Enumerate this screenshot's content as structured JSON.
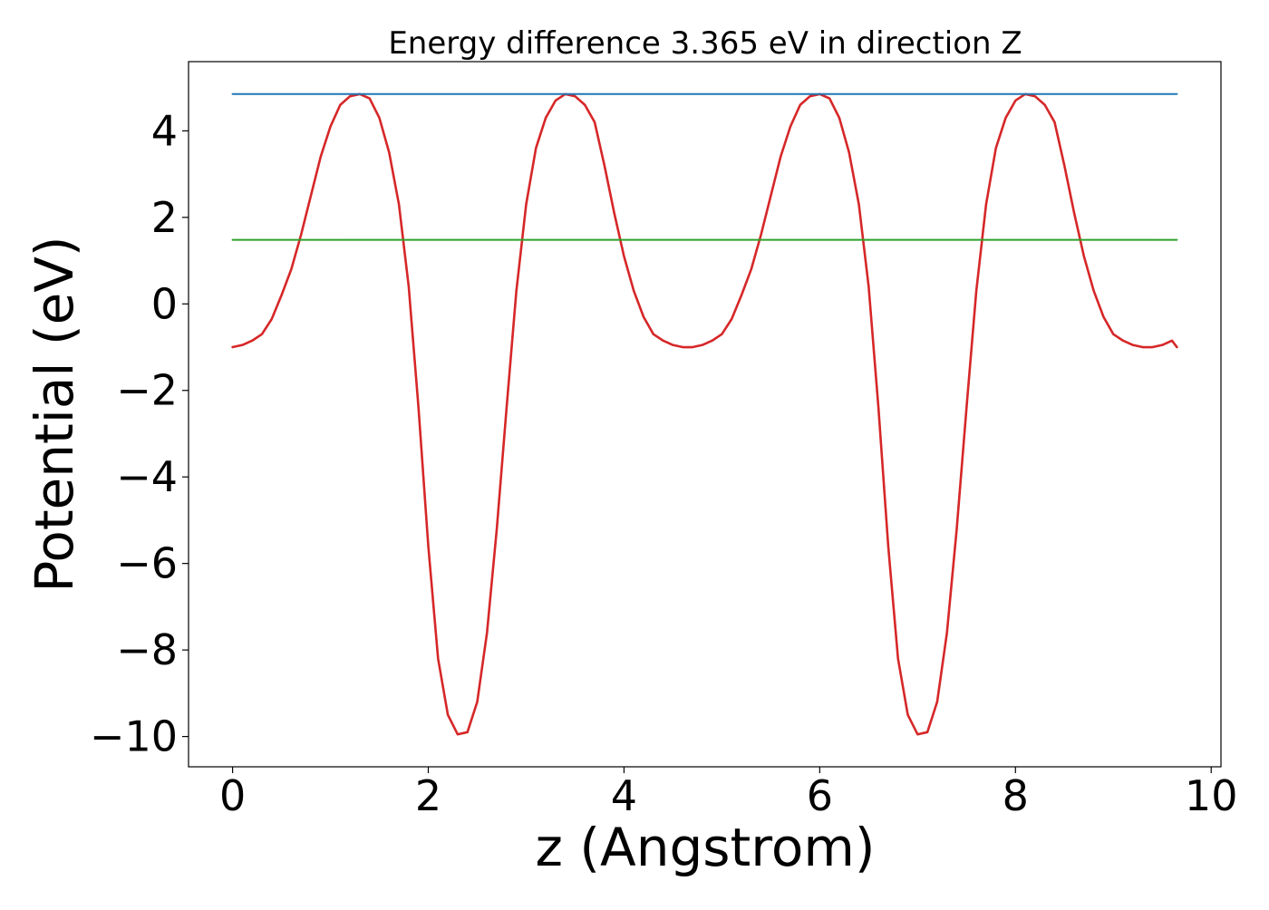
{
  "chart_data": {
    "type": "line",
    "title": "Energy difference 3.365 eV in direction Z",
    "xlabel": "z (Angstrom)",
    "ylabel": "Potential (eV)",
    "xlim": [
      -0.45,
      10.1
    ],
    "ylim": [
      -10.7,
      5.6
    ],
    "xticks": [
      0,
      2,
      4,
      6,
      8,
      10
    ],
    "yticks": [
      4,
      2,
      0,
      -2,
      -4,
      -6,
      -8,
      -10
    ],
    "grid": false,
    "legend": "none",
    "series": [
      {
        "color": "#d62728",
        "x": [
          0.0,
          0.1,
          0.2,
          0.3,
          0.4,
          0.5,
          0.6,
          0.7,
          0.8,
          0.9,
          1.0,
          1.1,
          1.2,
          1.3,
          1.4,
          1.5,
          1.6,
          1.7,
          1.8,
          1.9,
          2.0,
          2.1,
          2.2,
          2.3,
          2.4,
          2.5,
          2.6,
          2.7,
          2.8,
          2.9,
          3.0,
          3.1,
          3.2,
          3.3,
          3.4,
          3.5,
          3.6,
          3.7,
          3.8,
          3.9,
          4.0,
          4.1,
          4.2,
          4.3,
          4.4,
          4.5,
          4.6,
          4.7,
          4.8,
          4.9,
          5.0,
          5.1,
          5.2,
          5.3,
          5.4,
          5.5,
          5.6,
          5.7,
          5.8,
          5.9,
          6.0,
          6.1,
          6.2,
          6.3,
          6.4,
          6.5,
          6.6,
          6.7,
          6.8,
          6.9,
          7.0,
          7.1,
          7.2,
          7.3,
          7.4,
          7.5,
          7.6,
          7.7,
          7.8,
          7.9,
          8.0,
          8.1,
          8.2,
          8.3,
          8.4,
          8.5,
          8.6,
          8.7,
          8.8,
          8.9,
          9.0,
          9.1,
          9.2,
          9.3,
          9.4,
          9.5,
          9.6,
          9.65
        ],
        "y": [
          -1.0,
          -0.95,
          -0.85,
          -0.7,
          -0.35,
          0.2,
          0.8,
          1.6,
          2.5,
          3.4,
          4.1,
          4.6,
          4.8,
          4.85,
          4.75,
          4.3,
          3.5,
          2.3,
          0.4,
          -2.4,
          -5.6,
          -8.2,
          -9.5,
          -9.95,
          -9.9,
          -9.2,
          -7.6,
          -5.2,
          -2.4,
          0.3,
          2.3,
          3.6,
          4.3,
          4.7,
          4.85,
          4.8,
          4.6,
          4.2,
          3.2,
          2.1,
          1.1,
          0.3,
          -0.3,
          -0.7,
          -0.85,
          -0.95,
          -1.0,
          -1.0,
          -0.95,
          -0.85,
          -0.7,
          -0.35,
          0.2,
          0.8,
          1.6,
          2.5,
          3.4,
          4.1,
          4.6,
          4.8,
          4.85,
          4.75,
          4.3,
          3.5,
          2.3,
          0.4,
          -2.4,
          -5.6,
          -8.2,
          -9.5,
          -9.95,
          -9.9,
          -9.2,
          -7.6,
          -5.2,
          -2.4,
          0.3,
          2.3,
          3.6,
          4.3,
          4.7,
          4.85,
          4.8,
          4.6,
          4.2,
          3.2,
          2.1,
          1.1,
          0.3,
          -0.3,
          -0.7,
          -0.85,
          -0.95,
          -1.0,
          -1.0,
          -0.95,
          -0.85,
          -1.0
        ]
      },
      {
        "color": "#1f77b4",
        "x": [
          0.0,
          9.65
        ],
        "y": [
          4.85,
          4.85
        ]
      },
      {
        "color": "#2ca02c",
        "x": [
          0.0,
          9.65
        ],
        "y": [
          1.48,
          1.48
        ]
      }
    ]
  }
}
